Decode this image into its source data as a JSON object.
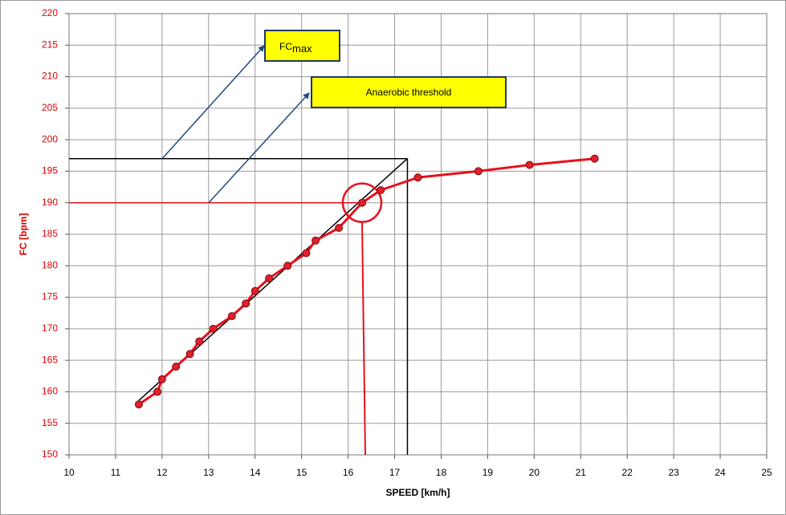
{
  "chart_data": {
    "type": "line",
    "x_label": "SPEED [km/h]",
    "y_label": "FC [bpm]",
    "x": [
      11.5,
      11.9,
      12.0,
      12.3,
      12.6,
      12.8,
      13.1,
      13.5,
      13.8,
      14.0,
      14.3,
      14.7,
      15.1,
      15.3,
      15.8,
      16.3,
      16.7,
      17.5,
      18.8,
      19.9,
      21.3
    ],
    "series": [
      {
        "color": "#e8101c",
        "values": [
          158,
          160,
          162,
          164,
          166,
          168,
          170,
          172,
          174,
          176,
          178,
          180,
          182,
          184,
          186,
          190,
          192,
          194,
          195,
          196,
          197
        ]
      }
    ],
    "xlim": [
      10,
      25
    ],
    "xticks": [
      10,
      11,
      12,
      13,
      14,
      15,
      16,
      17,
      18,
      19,
      20,
      21,
      22,
      23,
      24,
      25
    ],
    "ylim": [
      150,
      220
    ],
    "yticks": [
      150,
      155,
      160,
      165,
      170,
      175,
      180,
      185,
      190,
      195,
      200,
      205,
      210,
      215,
      220
    ],
    "grid": true,
    "annotations": [
      {
        "text": "FC",
        "sub": "max"
      },
      {
        "text": "Anaerobic threshold"
      }
    ]
  }
}
